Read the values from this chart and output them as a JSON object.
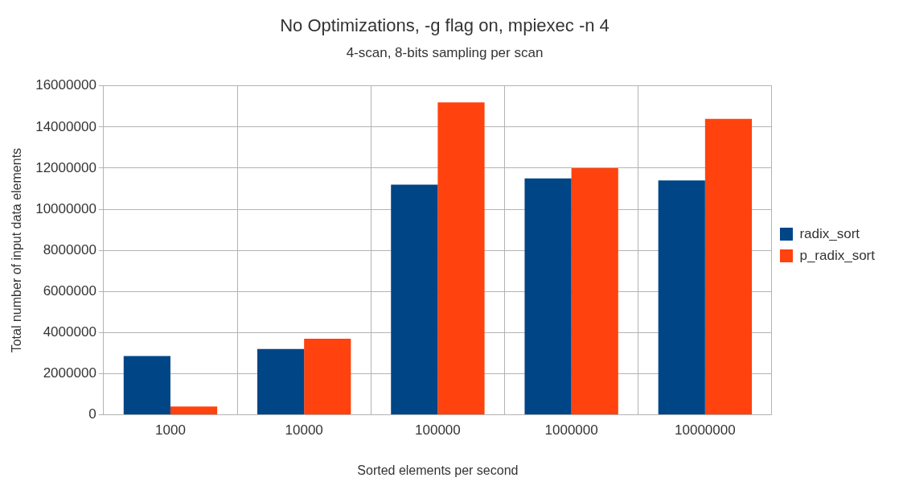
{
  "chart_data": {
    "type": "bar",
    "title": "No Optimizations, -g flag on, mpiexec -n 4",
    "subtitle": "4-scan, 8-bits sampling per scan",
    "xlabel": "Sorted elements per second",
    "ylabel": "Total number of input data elements",
    "categories": [
      "1000",
      "10000",
      "100000",
      "1000000",
      "10000000"
    ],
    "series": [
      {
        "name": "radix_sort",
        "color": "#004586",
        "values": [
          2850000,
          3200000,
          11200000,
          11500000,
          11400000
        ]
      },
      {
        "name": "p_radix_sort",
        "color": "#ff420e",
        "values": [
          400000,
          3700000,
          15200000,
          12000000,
          14400000
        ]
      }
    ],
    "ylim": [
      0,
      16000000
    ],
    "yticks": [
      0,
      2000000,
      4000000,
      6000000,
      8000000,
      10000000,
      12000000,
      14000000,
      16000000
    ],
    "grid": true,
    "legend": "right"
  }
}
